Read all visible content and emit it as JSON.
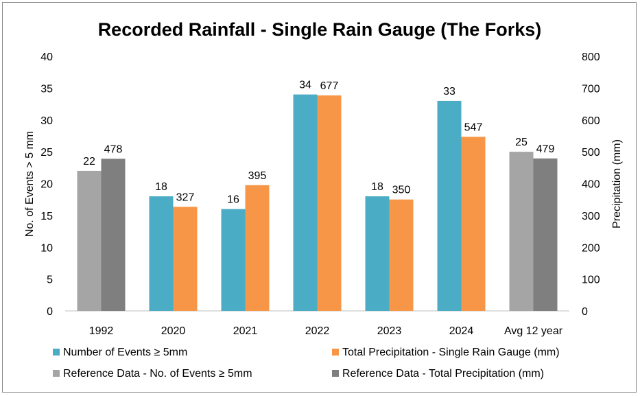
{
  "chart_data": {
    "type": "bar",
    "title": "Recorded Rainfall - Single Rain Gauge (The Forks)",
    "categories": [
      "1992",
      "2020",
      "2021",
      "2022",
      "2023",
      "2024",
      "Avg 12 year"
    ],
    "y_left": {
      "label": "No. of Events > 5 mm",
      "min": 0,
      "max": 40,
      "step": 5
    },
    "y_right": {
      "label": "Precipitation (mm)",
      "min": 0,
      "max": 800,
      "step": 100
    },
    "series": [
      {
        "name": "Number of Events ≥ 5mm",
        "axis": "left",
        "color": "#4BACC6",
        "values": [
          null,
          18,
          16,
          34,
          18,
          33,
          null
        ]
      },
      {
        "name": "Total Precipitation - Single Rain Gauge (mm)",
        "axis": "right",
        "color": "#F79646",
        "values": [
          null,
          327,
          395,
          677,
          350,
          547,
          null
        ]
      },
      {
        "name": "Reference Data - No. of Events ≥ 5mm",
        "axis": "left",
        "color": "#A5A5A5",
        "values": [
          22,
          null,
          null,
          null,
          null,
          null,
          25
        ]
      },
      {
        "name": "Reference Data - Total Precipitation (mm)",
        "axis": "right",
        "color": "#7F7F7F",
        "values": [
          478,
          null,
          null,
          null,
          null,
          null,
          479
        ]
      }
    ],
    "grid": false,
    "legend": "bottom"
  }
}
